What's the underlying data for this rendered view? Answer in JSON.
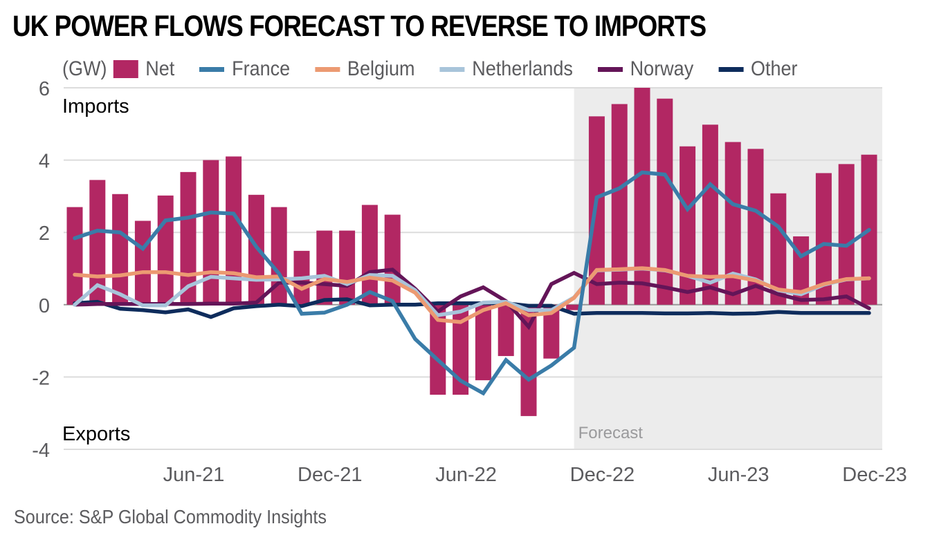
{
  "chart_data": {
    "type": "bar+line",
    "title": "UK POWER FLOWS FORECAST TO REVERSE TO IMPORTS",
    "unit_label": "(GW)",
    "ylabel": "GW",
    "xlabel": "",
    "ylim": [
      -4,
      6
    ],
    "yticks": [
      6,
      4,
      2,
      0,
      -2,
      -4
    ],
    "ytick_labels": [
      "6",
      "4",
      "2",
      "0",
      "-2",
      "-4"
    ],
    "grid": true,
    "legend_position": "top",
    "categories": [
      "Jan-21",
      "Feb-21",
      "Mar-21",
      "Apr-21",
      "May-21",
      "Jun-21",
      "Jul-21",
      "Aug-21",
      "Sep-21",
      "Oct-21",
      "Nov-21",
      "Dec-21",
      "Jan-22",
      "Feb-22",
      "Mar-22",
      "Apr-22",
      "May-22",
      "Jun-22",
      "Jul-22",
      "Aug-22",
      "Sep-22",
      "Oct-22",
      "Nov-22",
      "Dec-22",
      "Jan-23",
      "Feb-23",
      "Mar-23",
      "Apr-23",
      "May-23",
      "Jun-23",
      "Jul-23",
      "Aug-23",
      "Sep-23",
      "Oct-23",
      "Nov-23",
      "Dec-23"
    ],
    "xtick_labels": [
      {
        "index": 5,
        "label": "Jun-21"
      },
      {
        "index": 11,
        "label": "Dec-21"
      },
      {
        "index": 17,
        "label": "Jun-22"
      },
      {
        "index": 23,
        "label": "Dec-22"
      },
      {
        "index": 29,
        "label": "Jun-23"
      },
      {
        "index": 35,
        "label": "Dec-23"
      }
    ],
    "series": [
      {
        "name": "Net",
        "type": "bar",
        "color": "#b22763",
        "values": [
          2.7,
          3.45,
          3.06,
          2.32,
          3.02,
          3.67,
          4.0,
          4.1,
          3.04,
          2.7,
          1.49,
          2.05,
          2.05,
          2.76,
          2.49,
          0.0,
          -2.49,
          -2.49,
          -2.09,
          -1.42,
          -3.08,
          -1.49,
          -0.15,
          5.21,
          5.55,
          6.0,
          5.7,
          4.38,
          4.98,
          4.5,
          4.31,
          3.08,
          1.89,
          3.64,
          3.89,
          4.15
        ]
      },
      {
        "name": "France",
        "type": "line",
        "color": "#3a7ca8",
        "values": [
          1.84,
          2.05,
          2.0,
          1.55,
          2.33,
          2.41,
          2.55,
          2.52,
          1.6,
          0.86,
          -0.25,
          -0.22,
          0.0,
          0.35,
          0.1,
          -0.95,
          -1.53,
          -2.1,
          -2.45,
          -1.53,
          -2.07,
          -1.68,
          -1.19,
          2.97,
          3.22,
          3.66,
          3.6,
          2.64,
          3.33,
          2.78,
          2.6,
          2.16,
          1.34,
          1.68,
          1.63,
          2.07
        ]
      },
      {
        "name": "Belgium",
        "type": "line",
        "color": "#ec9a72",
        "values": [
          0.83,
          0.78,
          0.81,
          0.9,
          0.9,
          0.82,
          0.9,
          0.87,
          0.76,
          0.78,
          0.44,
          0.71,
          0.63,
          0.75,
          0.67,
          0.33,
          -0.42,
          -0.48,
          -0.15,
          0.04,
          -0.29,
          -0.23,
          0.19,
          0.96,
          0.98,
          1.01,
          0.96,
          0.8,
          0.77,
          0.79,
          0.67,
          0.42,
          0.35,
          0.57,
          0.71,
          0.73
        ]
      },
      {
        "name": "Netherlands",
        "type": "line",
        "color": "#a8c4da",
        "values": [
          0.0,
          0.54,
          0.29,
          -0.02,
          -0.02,
          0.51,
          0.77,
          0.73,
          0.69,
          0.7,
          0.73,
          0.8,
          0.57,
          0.82,
          0.8,
          0.4,
          -0.29,
          -0.19,
          0.06,
          0.08,
          -0.15,
          -0.15,
          0.2,
          0.95,
          0.97,
          1.0,
          0.95,
          0.8,
          0.61,
          0.86,
          0.7,
          0.4,
          0.29,
          0.55,
          0.7,
          0.73
        ]
      },
      {
        "name": "Norway",
        "type": "line",
        "color": "#641558",
        "values": [
          0.0,
          0.02,
          0.02,
          0.02,
          0.02,
          0.02,
          0.03,
          0.03,
          0.06,
          0.61,
          0.61,
          0.57,
          0.52,
          0.9,
          0.97,
          0.44,
          -0.19,
          0.23,
          0.48,
          0.1,
          -0.61,
          0.57,
          0.88,
          0.57,
          0.61,
          0.59,
          0.48,
          0.35,
          0.48,
          0.29,
          0.52,
          0.29,
          0.13,
          0.15,
          0.23,
          -0.1
        ]
      },
      {
        "name": "Other",
        "type": "line",
        "color": "#0e2c5c",
        "values": [
          0.04,
          0.08,
          -0.11,
          -0.15,
          -0.21,
          -0.13,
          -0.34,
          -0.1,
          -0.04,
          0.0,
          -0.04,
          0.13,
          0.15,
          -0.02,
          0.0,
          0.0,
          0.04,
          0.04,
          0.04,
          0.04,
          -0.03,
          -0.03,
          -0.25,
          -0.23,
          -0.23,
          -0.23,
          -0.24,
          -0.24,
          -0.23,
          -0.25,
          -0.24,
          -0.2,
          -0.23,
          -0.23,
          -0.23,
          -0.23
        ]
      }
    ],
    "annotations": {
      "imports": "Imports",
      "exports": "Exports",
      "forecast": "Forecast"
    },
    "forecast_start_index": 22,
    "colors": {
      "grid": "#dcdcdc",
      "forecast_bg": "#ececec",
      "zero_line": "#9a9a9a"
    }
  },
  "source": "Source: S&P Global Commodity Insights"
}
